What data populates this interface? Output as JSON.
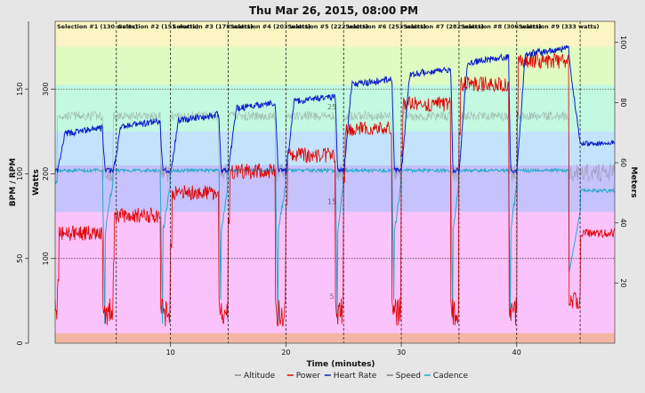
{
  "chart_data": {
    "type": "line",
    "title": "Thu Mar 26, 2015, 08:00 PM",
    "xlabel": "Time (minutes)",
    "ylabel_left_outer": "BPM / RPM",
    "ylabel_left_inner": "Watts",
    "ylabel_right": "Meters",
    "xlim": [
      0,
      48.5
    ],
    "x_ticks": [
      10,
      20,
      30,
      40
    ],
    "y_bpm_ticks": [
      0,
      50,
      100,
      150
    ],
    "y_bpm_lim": [
      0,
      190
    ],
    "y_watts_ticks": [
      100,
      200,
      300
    ],
    "y_watts_lim": [
      0,
      380
    ],
    "y_meters_ticks": [
      20,
      40,
      60,
      80,
      100
    ],
    "y_meters_lim": [
      0,
      107
    ],
    "speed_ticks": [
      5,
      15,
      25
    ],
    "speed_lim": [
      0,
      34
    ],
    "zones": [
      {
        "from": 0,
        "to": 12,
        "color": "#f4b6a4"
      },
      {
        "from": 12,
        "to": 155,
        "color": "#fbc3fb"
      },
      {
        "from": 155,
        "to": 210,
        "color": "#c6c2fb"
      },
      {
        "from": 210,
        "to": 250,
        "color": "#c2e3fb"
      },
      {
        "from": 250,
        "to": 305,
        "color": "#c3f8e1"
      },
      {
        "from": 305,
        "to": 350,
        "color": "#e0fbc2"
      },
      {
        "from": 350,
        "to": 380,
        "color": "#faf5c2"
      }
    ],
    "selections": [
      {
        "label": "Selection #1 (130 watts)",
        "start": 0.0,
        "end": 5.3,
        "watts": 130
      },
      {
        "label": "Selection #2 (151 watts)",
        "start": 5.3,
        "end": 10.0,
        "watts": 151
      },
      {
        "label": "Selection #3 (178 watts)",
        "start": 10.0,
        "end": 15.0,
        "watts": 178
      },
      {
        "label": "Selection #4 (203 watts)",
        "start": 15.0,
        "end": 20.0,
        "watts": 203
      },
      {
        "label": "Selection #5 (222 watts)",
        "start": 20.0,
        "end": 25.0,
        "watts": 222
      },
      {
        "label": "Selection #6 (253 watts)",
        "start": 25.0,
        "end": 30.0,
        "watts": 253
      },
      {
        "label": "Selection #7 (282 watts)",
        "start": 30.0,
        "end": 35.0,
        "watts": 282
      },
      {
        "label": "Selection #8 (306 watts)",
        "start": 35.0,
        "end": 40.0,
        "watts": 306
      },
      {
        "label": "Selection #9 (333 watts)",
        "start": 40.0,
        "end": 45.5,
        "watts": 333
      }
    ],
    "intervals": [
      {
        "start": 0.2,
        "end": 4.1,
        "power": 130,
        "hr": 123
      },
      {
        "start": 5.0,
        "end": 9.1,
        "power": 151,
        "hr": 127
      },
      {
        "start": 10.0,
        "end": 14.2,
        "power": 178,
        "hr": 131
      },
      {
        "start": 15.0,
        "end": 19.1,
        "power": 203,
        "hr": 138
      },
      {
        "start": 20.0,
        "end": 24.3,
        "power": 222,
        "hr": 142
      },
      {
        "start": 25.0,
        "end": 29.2,
        "power": 253,
        "hr": 152
      },
      {
        "start": 30.0,
        "end": 34.3,
        "power": 282,
        "hr": 158
      },
      {
        "start": 35.0,
        "end": 39.3,
        "power": 306,
        "hr": 165
      },
      {
        "start": 40.0,
        "end": 44.5,
        "power": 333,
        "hr": 170
      }
    ],
    "hr_rest": 100,
    "cadence_work": 102,
    "cadence_rest_final": 90,
    "power_rest": 30,
    "series": [
      {
        "name": "Altitude",
        "color": "#888888"
      },
      {
        "name": "Power",
        "color": "#e00000"
      },
      {
        "name": "Heart Rate",
        "color": "#0a1ec8"
      },
      {
        "name": "Speed",
        "color": "#7a7a7a"
      },
      {
        "name": "Cadence",
        "color": "#22aacc"
      }
    ],
    "reference_lines": [
      {
        "axis": "watts",
        "value": 300
      },
      {
        "axis": "watts",
        "value": 100
      }
    ]
  }
}
